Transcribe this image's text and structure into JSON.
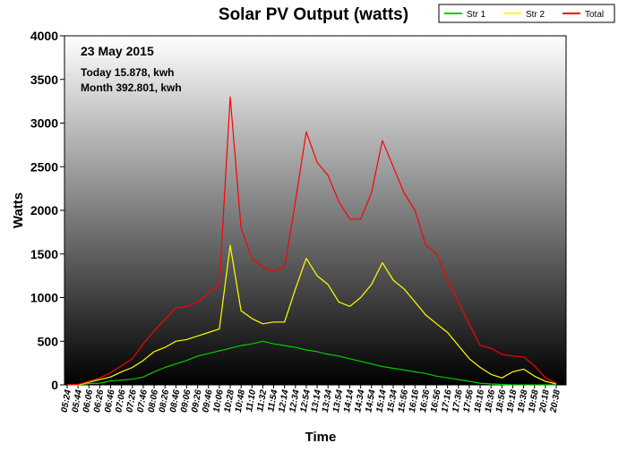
{
  "chart_data": {
    "type": "line",
    "title": "Solar PV Output (watts)",
    "xlabel": "Time",
    "ylabel": "Watts",
    "ylim": [
      0,
      4000
    ],
    "yticks": [
      0,
      500,
      1000,
      1500,
      2000,
      2500,
      3000,
      3500,
      4000
    ],
    "legend": {
      "position": "top-right"
    },
    "grid": false,
    "background": "vertical gradient: white at top to black at bottom",
    "annotations": {
      "date": "23 May 2015",
      "today": "Today 15.878, kwh",
      "month": "Month 392.801, kwh"
    },
    "x_tick_labels": [
      "05:24",
      "05:44",
      "06:06",
      "06:26",
      "06:46",
      "07:06",
      "07:26",
      "07:46",
      "08:06",
      "08:26",
      "08:46",
      "09:06",
      "09:26",
      "09:46",
      "10:06",
      "10:28",
      "10:48",
      "11:10",
      "11:32",
      "11:54",
      "12:14",
      "12:34",
      "12:54",
      "13:14",
      "13:34",
      "13:54",
      "14:14",
      "14:34",
      "14:54",
      "15:14",
      "15:34",
      "15:56",
      "16:16",
      "16:36",
      "16:56",
      "17:16",
      "17:36",
      "17:56",
      "18:16",
      "18:36",
      "18:56",
      "19:18",
      "19:38",
      "19:58",
      "20:18",
      "20:38"
    ],
    "series": [
      {
        "name": "Str 1",
        "color": "#00cc00",
        "values": [
          0,
          0,
          15,
          20,
          45,
          55,
          65,
          90,
          150,
          200,
          240,
          280,
          330,
          360,
          390,
          420,
          450,
          470,
          500,
          470,
          450,
          430,
          400,
          380,
          350,
          330,
          300,
          270,
          240,
          210,
          190,
          170,
          150,
          130,
          100,
          80,
          60,
          40,
          20,
          10,
          5,
          0,
          0,
          0,
          0,
          0
        ]
      },
      {
        "name": "Str 2",
        "color": "#ffff00",
        "values": [
          0,
          0,
          30,
          60,
          90,
          150,
          200,
          280,
          380,
          430,
          500,
          520,
          560,
          600,
          640,
          1600,
          850,
          760,
          700,
          720,
          720,
          1100,
          1450,
          1250,
          1150,
          950,
          900,
          1000,
          1150,
          1400,
          1200,
          1100,
          950,
          800,
          700,
          600,
          450,
          300,
          200,
          120,
          80,
          150,
          180,
          100,
          40,
          10
        ]
      },
      {
        "name": "Total",
        "color": "#ff0000",
        "values": [
          0,
          5,
          40,
          80,
          140,
          220,
          300,
          470,
          620,
          750,
          880,
          900,
          950,
          1050,
          1150,
          3300,
          1800,
          1450,
          1350,
          1300,
          1350,
          2100,
          2900,
          2550,
          2400,
          2100,
          1900,
          1900,
          2200,
          2800,
          2500,
          2200,
          2000,
          1600,
          1500,
          1200,
          950,
          700,
          450,
          420,
          350,
          330,
          320,
          220,
          80,
          20
        ]
      }
    ]
  }
}
